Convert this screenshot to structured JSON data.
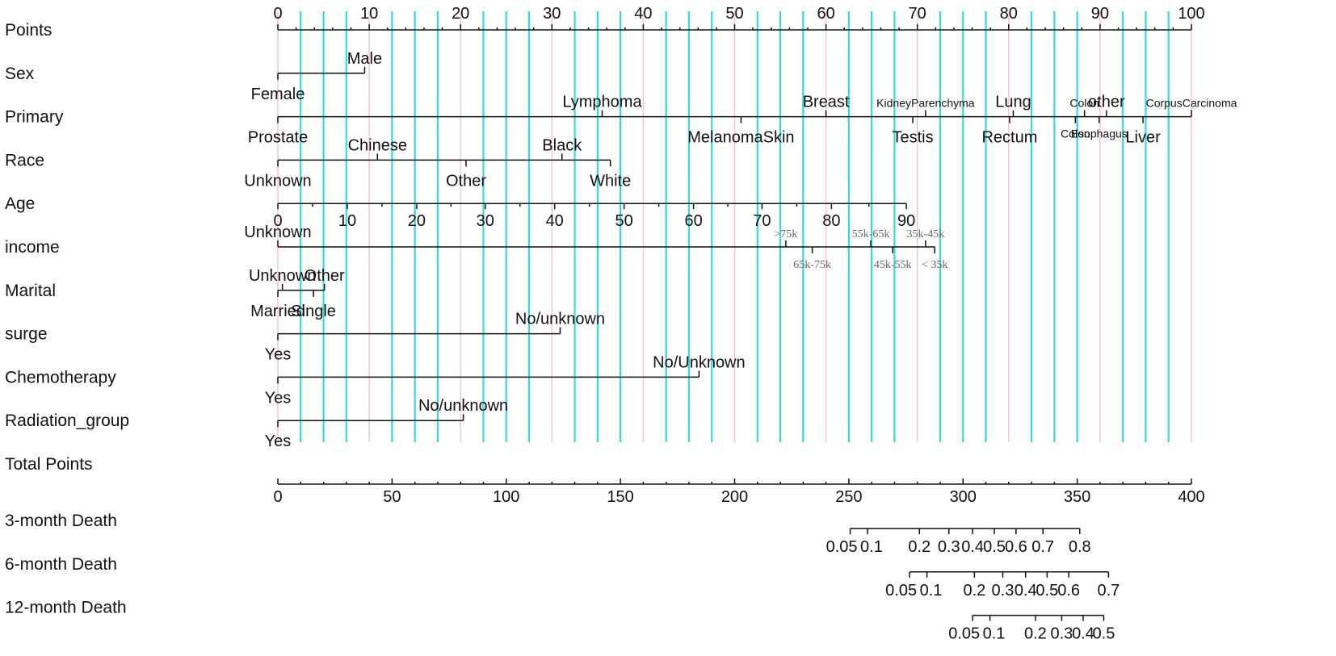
{
  "chart_data": {
    "type": "nomogram",
    "colors": {
      "grid_major": "#f2c4cc",
      "grid_minor": "#36d8dc",
      "axis": "#111111",
      "text": "#111111"
    },
    "points_axis": {
      "label": "Points",
      "min": 0,
      "max": 100,
      "ticks": [
        0,
        10,
        20,
        30,
        40,
        50,
        60,
        70,
        80,
        90,
        100
      ],
      "gridlines": true
    },
    "variables": [
      {
        "name": "Sex",
        "levels": [
          {
            "label": "Female",
            "points": 0,
            "side": "below"
          },
          {
            "label": "Male",
            "points": 9.5,
            "side": "above"
          }
        ]
      },
      {
        "name": "Primary",
        "levels": [
          {
            "label": "Prostate",
            "points": 0,
            "side": "below"
          },
          {
            "label": "Lymphoma",
            "points": 35.5,
            "side": "above"
          },
          {
            "label": "MelanomaSkin",
            "points": 50.7,
            "side": "below"
          },
          {
            "label": "Breast",
            "points": 60,
            "side": "above"
          },
          {
            "label": "Testis",
            "points": 69.5,
            "side": "below"
          },
          {
            "label": "KidneyParenchyma",
            "points": 70.9,
            "side": "above",
            "small": true
          },
          {
            "label": "Rectum",
            "points": 80.1,
            "side": "below"
          },
          {
            "label": "Lung",
            "points": 80.5,
            "side": "above"
          },
          {
            "label": "Colon",
            "points": 87.3,
            "side": "below",
            "small": true
          },
          {
            "label": "Colon",
            "points": 88.3,
            "side": "above",
            "small": true
          },
          {
            "label": "Esophagus",
            "points": 89.9,
            "side": "below",
            "small": true
          },
          {
            "label": "other",
            "points": 90.7,
            "side": "above"
          },
          {
            "label": "Liver",
            "points": 94.7,
            "side": "below"
          },
          {
            "label": "CorpusCarcinoma",
            "points": 100,
            "side": "above",
            "small": true
          }
        ]
      },
      {
        "name": "Race",
        "levels": [
          {
            "label": "Unknown",
            "points": 0,
            "side": "below"
          },
          {
            "label": "Chinese",
            "points": 10.9,
            "side": "above"
          },
          {
            "label": "Other",
            "points": 20.6,
            "side": "below"
          },
          {
            "label": "Black",
            "points": 31.1,
            "side": "above"
          },
          {
            "label": "White",
            "points": 36.4,
            "side": "below"
          }
        ]
      },
      {
        "name": "Age",
        "continuous": true,
        "ticks": [
          "0",
          "10",
          "20",
          "30",
          "40",
          "50",
          "60",
          "70",
          "80",
          "90"
        ],
        "tick_points": [
          0,
          7.6,
          15.2,
          22.7,
          30.3,
          37.9,
          45.5,
          53.0,
          60.6,
          68.8
        ]
      },
      {
        "name": "income",
        "levels": [
          {
            "label": "Unknown",
            "points": 0,
            "side": "above"
          },
          {
            "label": ">75k",
            "points": 55.6,
            "side": "above",
            "serif": true
          },
          {
            "label": "65k-75k",
            "points": 58.5,
            "side": "below",
            "serif": true
          },
          {
            "label": "55k-65k",
            "points": 64.9,
            "side": "above",
            "serif": true
          },
          {
            "label": "45k-55k",
            "points": 67.3,
            "side": "below",
            "serif": true
          },
          {
            "label": "35k-45k",
            "points": 70.9,
            "side": "above",
            "serif": true
          },
          {
            "label": "< 35k",
            "points": 71.9,
            "side": "below",
            "serif": true
          }
        ]
      },
      {
        "name": "Marital",
        "levels": [
          {
            "label": "Unknown",
            "points": 0.5,
            "side": "above"
          },
          {
            "label": "Married",
            "points": 0,
            "side": "below"
          },
          {
            "label": "Single",
            "points": 3.9,
            "side": "below"
          },
          {
            "label": "Other",
            "points": 5.1,
            "side": "above"
          }
        ]
      },
      {
        "name": "surge",
        "levels": [
          {
            "label": "Yes",
            "points": 0,
            "side": "below"
          },
          {
            "label": "No/unknown",
            "points": 30.9,
            "side": "above"
          }
        ]
      },
      {
        "name": "Chemotherapy",
        "levels": [
          {
            "label": "Yes",
            "points": 0,
            "side": "below"
          },
          {
            "label": "No/Unknown",
            "points": 46.1,
            "side": "above"
          }
        ]
      },
      {
        "name": "Radiation_group",
        "levels": [
          {
            "label": "Yes",
            "points": 0,
            "side": "below"
          },
          {
            "label": "No/unknown",
            "points": 20.3,
            "side": "above"
          }
        ]
      }
    ],
    "total_points_axis": {
      "label": "Total Points",
      "min": 0,
      "max": 400,
      "ticks": [
        0,
        50,
        100,
        150,
        200,
        250,
        300,
        350,
        400
      ]
    },
    "outcomes": [
      {
        "name": "3-month Death",
        "ticks": [
          "0.05",
          "0.1",
          "0.2",
          "0.3",
          "0.4",
          "0.5",
          "0.6",
          "0.7",
          "0.8"
        ],
        "tick_total_points": [
          250.6,
          258.2,
          280.9,
          293.8,
          304.2,
          313.7,
          323.2,
          335.0,
          351.1
        ]
      },
      {
        "name": "6-month Death",
        "ticks": [
          "0.05",
          "0.1",
          "0.2",
          "0.3",
          "0.4",
          "0.5",
          "0.6",
          "0.7"
        ],
        "tick_total_points": [
          276.6,
          284.2,
          305.0,
          317.4,
          327.4,
          336.8,
          346.3,
          363.7
        ]
      },
      {
        "name": "12-month Death",
        "ticks": [
          "0.05",
          "0.1",
          "0.2",
          "0.3",
          "0.4",
          "0.5"
        ],
        "tick_total_points": [
          304.2,
          311.8,
          331.7,
          343.2,
          352.6,
          361.6
        ]
      }
    ]
  }
}
